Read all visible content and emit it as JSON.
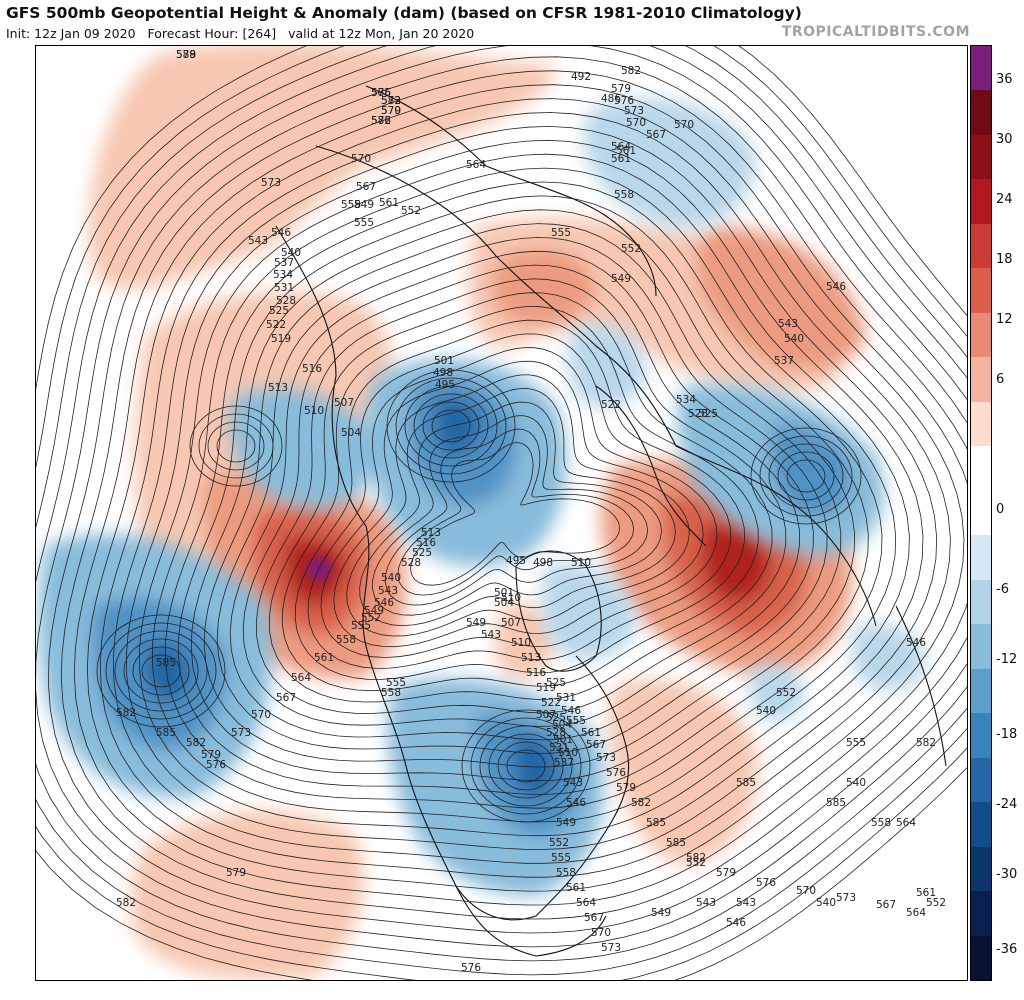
{
  "header": {
    "title": "GFS 500mb Geopotential Height & Anomaly (dam) (based on CFSR 1981-2010 Climatology)",
    "init": "Init: 12z Jan 09 2020",
    "forecast_hour": "Forecast Hour: [264]",
    "valid": "valid at 12z Mon, Jan 20 2020",
    "brand": "TROPICALTIDBITS.COM"
  },
  "colorbar": {
    "tick_labels": [
      "36",
      "30",
      "24",
      "18",
      "12",
      "6",
      "0",
      "-6",
      "-12",
      "-18",
      "-24",
      "-30",
      "-36"
    ],
    "segment_colors": [
      "#7b1f7c",
      "#6e0b14",
      "#8e1118",
      "#b2181f",
      "#cc3a35",
      "#dc5f4e",
      "#e88b74",
      "#f3b39c",
      "#fbdccd",
      "#ffffff",
      "#ffffff",
      "#d5e7f3",
      "#b1d3e8",
      "#88bcdb",
      "#5c9fcb",
      "#3a82bc",
      "#2466a6",
      "#124c8a",
      "#0b356b",
      "#091f4d",
      "#081334"
    ]
  },
  "map": {
    "anomaly_colors": {
      "warm_light": "#f7c7b1",
      "warm_mid": "#ec9b80",
      "warm_strong": "#d9624c",
      "warm_deep": "#b1241f",
      "warm_max": "#8e1118",
      "extreme": "#7b1f7c",
      "cold_light": "#b9d7ea",
      "cold_mid": "#88bcdb",
      "cold_strong": "#4f92c5",
      "cold_deep": "#2466a6",
      "cold_max": "#124c8a"
    },
    "contour_labels": [
      "588",
      "585",
      "582",
      "579",
      "576",
      "573",
      "570",
      "567",
      "564",
      "561",
      "558",
      "555",
      "552",
      "549",
      "546",
      "543",
      "540",
      "537",
      "534",
      "531",
      "528",
      "525",
      "522",
      "519",
      "516",
      "513",
      "510",
      "507",
      "504",
      "501",
      "498",
      "495",
      "492",
      "486",
      "582",
      "579",
      "576",
      "573",
      "570",
      "570",
      "567",
      "564",
      "561",
      "561",
      "558",
      "555",
      "552",
      "549",
      "546",
      "543",
      "540",
      "537",
      "534",
      "528",
      "525",
      "522",
      "510",
      "498",
      "495",
      "501",
      "504",
      "507",
      "510",
      "513",
      "516",
      "519",
      "522",
      "525",
      "528",
      "531",
      "537",
      "543",
      "546",
      "549",
      "552",
      "555",
      "558",
      "561",
      "564",
      "567",
      "570",
      "573",
      "576",
      "579",
      "582",
      "585",
      "582",
      "585",
      "582",
      "579",
      "576",
      "573",
      "570",
      "567",
      "564",
      "561",
      "558",
      "555",
      "552",
      "549",
      "546",
      "543",
      "540",
      "528",
      "525",
      "516",
      "513",
      "510",
      "507",
      "504",
      "501",
      "510",
      "525",
      "531",
      "546",
      "555",
      "561",
      "567",
      "573",
      "576",
      "579",
      "582",
      "585",
      "585",
      "582",
      "579",
      "576",
      "570",
      "573",
      "567",
      "564",
      "561",
      "558",
      "555",
      "552",
      "549",
      "546",
      "543",
      "540",
      "552",
      "546",
      "549",
      "543",
      "555",
      "558",
      "564",
      "552",
      "543",
      "540",
      "540",
      "582",
      "585",
      "585",
      "579",
      "576",
      "573",
      "570",
      "582"
    ]
  }
}
